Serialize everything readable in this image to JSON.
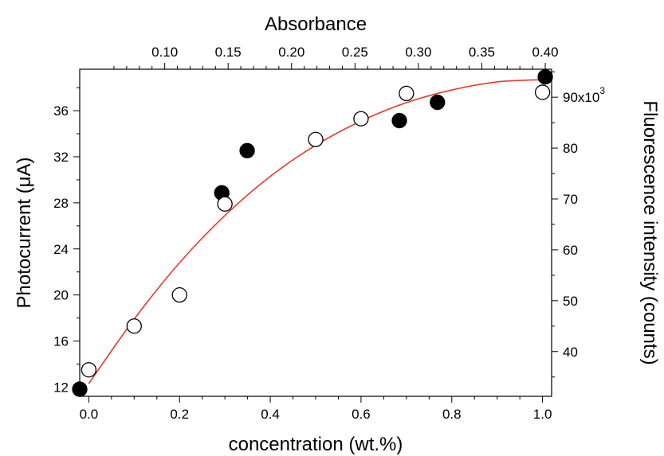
{
  "chart_data": {
    "type": "scatter",
    "title": "",
    "xlabel": "concentration (wt.%)",
    "x2label": "Absorbance",
    "ylabel": "Photocurrent (μA)",
    "y2label": "Fluorescence intensity (counts)",
    "xlim": [
      -0.02,
      1.02
    ],
    "ylim": [
      11.2,
      39.6
    ],
    "x2lim": [
      0.033,
      0.405
    ],
    "y2lim": [
      31.2,
      95.5
    ],
    "x_ticks": [
      0.0,
      0.2,
      0.4,
      0.6,
      0.8,
      1.0
    ],
    "x_tick_labels": [
      "0.0",
      "0.2",
      "0.4",
      "0.6",
      "0.8",
      "1.0"
    ],
    "y_ticks": [
      12,
      16,
      20,
      24,
      28,
      32,
      36
    ],
    "y_tick_labels": [
      "12",
      "16",
      "20",
      "24",
      "28",
      "32",
      "36"
    ],
    "x2_ticks": [
      0.1,
      0.15,
      0.2,
      0.25,
      0.3,
      0.35,
      0.4
    ],
    "x2_tick_labels": [
      "0.10",
      "0.15",
      "0.20",
      "0.25",
      "0.30",
      "0.35",
      "0.40"
    ],
    "y2_ticks": [
      40,
      50,
      60,
      70,
      80,
      90
    ],
    "y2_tick_labels": [
      "40",
      "50",
      "60",
      "70",
      "80",
      "90x10"
    ],
    "y2_tick_exponent": "3",
    "grid": false,
    "series": [
      {
        "marker": "filled-circle",
        "axes": "top-right",
        "color": "#000000",
        "x": [
          0.033,
          0.145,
          0.165,
          0.285,
          0.315,
          0.4
        ],
        "y": [
          32.6,
          71.2,
          79.5,
          85.4,
          89.0,
          94.0
        ]
      },
      {
        "marker": "open-circle",
        "axes": "bottom-left",
        "color": "#000000",
        "x": [
          0.0,
          0.1,
          0.2,
          0.3,
          0.5,
          0.6,
          0.7,
          1.0
        ],
        "y": [
          13.5,
          17.3,
          20.0,
          27.9,
          33.5,
          35.3,
          37.5,
          37.6
        ]
      },
      {
        "type": "line",
        "axes": "bottom-left",
        "color": "#e8392f",
        "x": [
          0.0,
          0.1,
          0.2,
          0.3,
          0.4,
          0.5,
          0.6,
          0.7,
          0.8,
          0.9,
          1.0
        ],
        "y": [
          12.3,
          17.9,
          22.8,
          26.9,
          30.3,
          33.0,
          35.1,
          36.7,
          37.8,
          38.5,
          38.7
        ]
      }
    ]
  }
}
